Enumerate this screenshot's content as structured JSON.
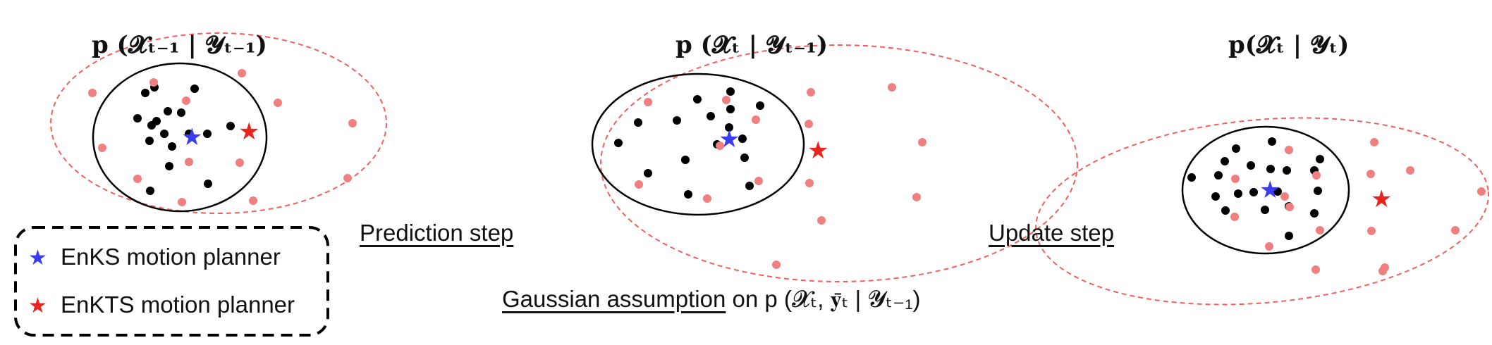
{
  "panels": [
    {
      "title": "p (𝓧ₜ₋₁ | 𝓨ₜ₋₁)"
    },
    {
      "title": "p (𝓧ₜ | 𝓨ₜ₋₁)"
    },
    {
      "title": "p(𝓧ₜ | 𝓨ₜ)"
    }
  ],
  "steps": {
    "prediction": "Prediction step",
    "update": "Update step",
    "gaussian_underlined": "Gaussian assumption",
    "gaussian_rest": " on p (𝓧ₜ, 𝐲̄ₜ | 𝓨ₜ₋₁)"
  },
  "legend": {
    "items": [
      {
        "label": "EnKS motion planner",
        "color": "#3b3bf0"
      },
      {
        "label": "EnKTS motion planner",
        "color": "#e8241f"
      }
    ]
  },
  "colors": {
    "black_particle": "#000000",
    "red_particle": "#f08080",
    "enks_star": "#3b3bf0",
    "enkts_star": "#e8241f",
    "red_ellipse": "#f06060"
  }
}
